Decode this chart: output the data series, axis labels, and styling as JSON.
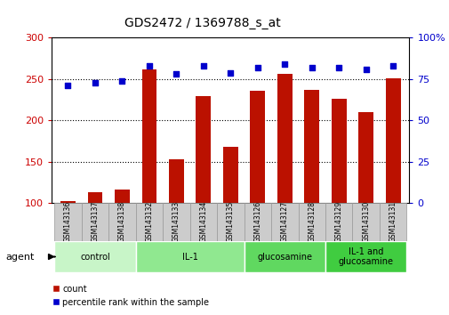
{
  "title": "GDS2472 / 1369788_s_at",
  "samples": [
    "GSM143136",
    "GSM143137",
    "GSM143138",
    "GSM143132",
    "GSM143133",
    "GSM143134",
    "GSM143135",
    "GSM143126",
    "GSM143127",
    "GSM143128",
    "GSM143129",
    "GSM143130",
    "GSM143131"
  ],
  "counts": [
    103,
    113,
    117,
    262,
    153,
    229,
    168,
    236,
    256,
    237,
    226,
    210,
    251
  ],
  "percentiles": [
    71,
    73,
    74,
    83,
    78,
    83,
    79,
    82,
    84,
    82,
    82,
    81,
    83
  ],
  "groups": [
    {
      "label": "control",
      "start": 0,
      "end": 3,
      "color": "#c8f5c8"
    },
    {
      "label": "IL-1",
      "start": 3,
      "end": 7,
      "color": "#90e890"
    },
    {
      "label": "glucosamine",
      "start": 7,
      "end": 10,
      "color": "#60d860"
    },
    {
      "label": "IL-1 and\nglucosamine",
      "start": 10,
      "end": 13,
      "color": "#40cc40"
    }
  ],
  "bar_color": "#bb1100",
  "dot_color": "#0000cc",
  "ylim_left": [
    100,
    300
  ],
  "ylim_right": [
    0,
    100
  ],
  "yticks_left": [
    100,
    150,
    200,
    250,
    300
  ],
  "yticks_right": [
    0,
    25,
    50,
    75,
    100
  ],
  "bg_color": "#ffffff",
  "plot_bg": "#ffffff",
  "tick_label_color_left": "#cc0000",
  "tick_label_color_right": "#0000cc",
  "bar_width": 0.55,
  "sample_box_color": "#cccccc",
  "sample_box_edge": "#999999"
}
